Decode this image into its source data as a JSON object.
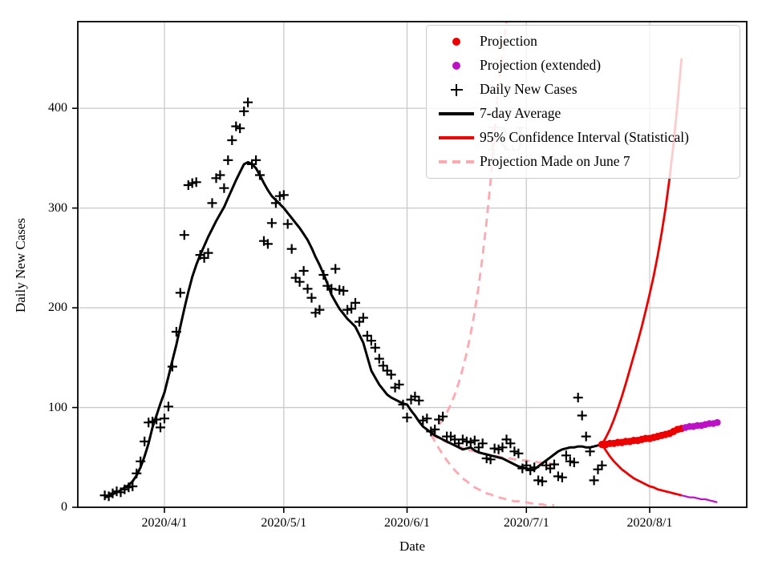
{
  "watermark": "RJ",
  "axes": {
    "xlabel": "Date",
    "ylabel": "Daily New Cases",
    "x_ticks": [
      {
        "label": "2020/4/1",
        "date": "2020-04-01"
      },
      {
        "label": "2020/5/1",
        "date": "2020-05-01"
      },
      {
        "label": "2020/6/1",
        "date": "2020-06-01"
      },
      {
        "label": "2020/7/1",
        "date": "2020-07-01"
      },
      {
        "label": "2020/8/1",
        "date": "2020-08-01"
      }
    ],
    "y_ticks": [
      "0",
      "100",
      "200",
      "300",
      "400"
    ],
    "y_tick_values": [
      0,
      100,
      200,
      300,
      400
    ],
    "ylim": [
      0,
      487
    ],
    "x_start": "2020-03-10",
    "x_end": "2020-08-25",
    "grid": true
  },
  "colors": {
    "red": "#ee0000",
    "magenta": "#bd10c7",
    "pink": "#ffa8b0",
    "black": "#000000",
    "grid": "#c9c9c9",
    "spine": "#1a1a1a",
    "watermark": "#888888"
  },
  "legend": {
    "position": "upper right",
    "items": [
      {
        "label": "Projection",
        "marker": "dot",
        "color": "#ee0000"
      },
      {
        "label": "Projection (extended)",
        "marker": "dot",
        "color": "#bd10c7"
      },
      {
        "label": "Daily New Cases",
        "marker": "plus",
        "color": "#000000"
      },
      {
        "label": "7-day Average",
        "marker": "line",
        "color": "#000000"
      },
      {
        "label": "95% Confidence Interval (Statistical)",
        "marker": "line",
        "color": "#ee0000"
      },
      {
        "label": "Projection Made on June 7",
        "marker": "dashed-line",
        "color": "#ffa8b0"
      }
    ]
  },
  "chart_data": {
    "type": "line+scatter",
    "title": "",
    "xlabel": "Date",
    "ylabel": "Daily New Cases",
    "x_unit": "daily",
    "series": [
      {
        "name": "june7_upper_ci",
        "legend": "Projection Made on June 7",
        "type": "line",
        "color": "#ffa8b0",
        "width": 2.8,
        "dash": [
          10,
          7
        ],
        "start": "2020-06-07",
        "values": [
          73,
          77,
          82,
          88,
          95,
          103,
          113,
          125,
          139,
          155,
          174,
          196,
          222,
          252,
          287,
          327,
          373,
          425,
          456,
          487
        ]
      },
      {
        "name": "june7_center",
        "legend": "Projection Made on June 7",
        "type": "line",
        "color": "#ffa8b0",
        "width": 2.8,
        "dash": [
          10,
          7
        ],
        "start": "2020-06-07",
        "values": [
          73,
          71,
          69,
          67,
          65,
          64,
          62,
          61,
          60,
          58,
          57,
          56,
          55,
          54,
          53,
          52,
          51,
          51,
          50,
          49,
          49,
          48,
          48,
          47,
          47,
          46,
          46,
          45,
          45,
          44,
          44,
          43
        ]
      },
      {
        "name": "june7_lower_ci",
        "legend": "Projection Made on June 7",
        "type": "line",
        "color": "#ffa8b0",
        "width": 2.8,
        "dash": [
          10,
          7
        ],
        "start": "2020-06-07",
        "values": [
          73,
          66,
          59,
          53,
          47,
          42,
          37,
          33,
          29,
          26,
          23,
          20,
          18,
          16,
          14,
          13,
          11,
          10,
          9,
          8,
          7,
          6,
          6,
          5,
          5,
          4,
          4,
          3,
          3,
          2,
          2,
          2
        ]
      },
      {
        "name": "daily_new_cases",
        "legend": "Daily New Cases",
        "type": "scatter",
        "marker": "plus",
        "size": 6,
        "width": 2.2,
        "color": "#000000",
        "start": "2020-03-17",
        "values": [
          12,
          11,
          14,
          16,
          15,
          18,
          20,
          21,
          34,
          46,
          66,
          85,
          86,
          88,
          80,
          89,
          101,
          141,
          176,
          215,
          273,
          323,
          325,
          326,
          253,
          250,
          255,
          305,
          330,
          333,
          320,
          348,
          368,
          382,
          380,
          397,
          406,
          344,
          348,
          333,
          267,
          264,
          285,
          305,
          312,
          313,
          284,
          259,
          230,
          226,
          237,
          219,
          210,
          195,
          198,
          233,
          222,
          219,
          239,
          218,
          217,
          198,
          199,
          205,
          186,
          190,
          172,
          167,
          160,
          149,
          142,
          137,
          133,
          120,
          123,
          103,
          90,
          108,
          111,
          107,
          87,
          89,
          76,
          78,
          88,
          91,
          71,
          71,
          68,
          64,
          68,
          66,
          65,
          67,
          60,
          64,
          49,
          48,
          59,
          58,
          60,
          68,
          64,
          56,
          54,
          39,
          42,
          37,
          40,
          27,
          26,
          42,
          39,
          43,
          31,
          30,
          52,
          46,
          45,
          110,
          92,
          71,
          56,
          27,
          38,
          42
        ]
      },
      {
        "name": "seven_day_average",
        "legend": "7-day Average",
        "type": "line",
        "color": "#000000",
        "width": 3,
        "start": "2020-03-17",
        "values": [
          10,
          11,
          13,
          15,
          17,
          20,
          22,
          26,
          32,
          40,
          51,
          64,
          80,
          92,
          104,
          115,
          131,
          147,
          163,
          181,
          199,
          216,
          231,
          243,
          253,
          262,
          271,
          279,
          287,
          294,
          301,
          310,
          319,
          328,
          336,
          344,
          346,
          344,
          340,
          333,
          325,
          318,
          312,
          308,
          304,
          300,
          295,
          290,
          285,
          280,
          274,
          268,
          260,
          251,
          243,
          234,
          224,
          213,
          206,
          199,
          194,
          189,
          185,
          181,
          173,
          165,
          151,
          137,
          130,
          123,
          118,
          113,
          110,
          108,
          106,
          104,
          103,
          97,
          92,
          86,
          81,
          78,
          75,
          72,
          70,
          68,
          66,
          64,
          62,
          60,
          58,
          59,
          60,
          57,
          55,
          54,
          53,
          52,
          51,
          50,
          49,
          47,
          45,
          43,
          41,
          40,
          39,
          38,
          38,
          41,
          44,
          47,
          50,
          53,
          56,
          58,
          59,
          60,
          60,
          61,
          61,
          60,
          60,
          61,
          62,
          63
        ]
      },
      {
        "name": "ci_upper",
        "legend": "95% Confidence Interval (Statistical)",
        "type": "line",
        "color": "#ee0000",
        "width": 2.8,
        "start": "2020-07-20",
        "values": [
          63,
          70,
          78,
          88,
          99,
          111,
          124,
          138,
          152,
          166,
          181,
          197,
          214,
          232,
          252,
          275,
          300,
          330,
          365,
          405,
          450
        ]
      },
      {
        "name": "ci_lower",
        "legend": "95% Confidence Interval (Statistical)",
        "type": "line",
        "color": "#ee0000",
        "width": 2.8,
        "start": "2020-07-20",
        "values": [
          63,
          57,
          51,
          46,
          42,
          38,
          35,
          32,
          29,
          27,
          25,
          23,
          21,
          20,
          18,
          17,
          16,
          15,
          14,
          13,
          12
        ]
      },
      {
        "name": "ci_lower_extended",
        "legend": "Projection (extended)",
        "type": "line",
        "color": "#bd10c7",
        "width": 2.2,
        "start": "2020-08-09",
        "values": [
          12,
          11,
          10,
          10,
          9,
          8,
          8,
          7,
          6,
          5
        ]
      },
      {
        "name": "projection",
        "legend": "Projection",
        "type": "scatter",
        "marker": "dot",
        "size": 4.6,
        "color": "#ee0000",
        "start": "2020-07-20",
        "values": [
          63,
          63,
          64,
          64,
          65,
          65,
          66,
          66,
          67,
          67,
          68,
          69,
          69,
          70,
          71,
          72,
          73,
          74,
          76,
          78,
          79
        ]
      },
      {
        "name": "projection_extended",
        "legend": "Projection (extended)",
        "type": "scatter",
        "marker": "dot",
        "size": 4.3,
        "color": "#bd10c7",
        "start": "2020-08-10",
        "values": [
          80,
          81,
          81,
          82,
          82,
          83,
          84,
          84,
          85
        ]
      }
    ]
  }
}
